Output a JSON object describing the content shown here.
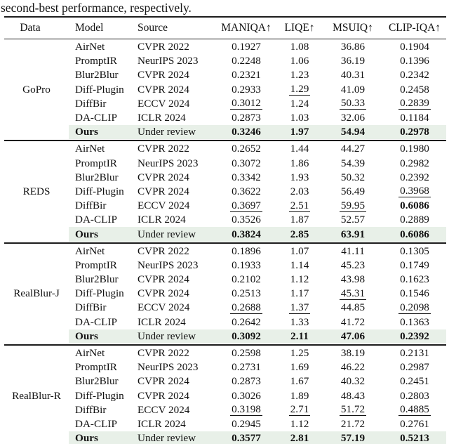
{
  "caption": "second-best performance, respectively.",
  "highlight_color": "#e8f0e8",
  "header": {
    "columns": [
      "Data",
      "Model",
      "Source",
      "MANIQA↑",
      "LIQE↑",
      "MSUIQ↑",
      "CLIP-IQA↑"
    ]
  },
  "groups": [
    {
      "data": "GoPro",
      "rows": [
        {
          "model": "AirNet",
          "source": "CVPR 2022",
          "values": [
            {
              "t": "0.1927"
            },
            {
              "t": "1.08"
            },
            {
              "t": "36.86"
            },
            {
              "t": "0.1904"
            }
          ]
        },
        {
          "model": "PromptIR",
          "source": "NeurIPS 2023",
          "values": [
            {
              "t": "0.2248"
            },
            {
              "t": "1.06"
            },
            {
              "t": "36.19"
            },
            {
              "t": "0.1396"
            }
          ]
        },
        {
          "model": "Blur2Blur",
          "source": "CVPR 2024",
          "values": [
            {
              "t": "0.2321"
            },
            {
              "t": "1.23"
            },
            {
              "t": "40.31"
            },
            {
              "t": "0.2342"
            }
          ]
        },
        {
          "model": "Diff-Plugin",
          "source": "CVPR 2024",
          "values": [
            {
              "t": "0.2933"
            },
            {
              "t": "1.29",
              "s": "u"
            },
            {
              "t": "41.09"
            },
            {
              "t": "0.2458"
            }
          ]
        },
        {
          "model": "DiffBir",
          "source": "ECCV 2024",
          "values": [
            {
              "t": "0.3012",
              "s": "u"
            },
            {
              "t": "1.24"
            },
            {
              "t": "50.33",
              "s": "u"
            },
            {
              "t": "0.2839",
              "s": "u"
            }
          ]
        },
        {
          "model": "DA-CLIP",
          "source": "ICLR 2024",
          "values": [
            {
              "t": "0.2873"
            },
            {
              "t": "1.03"
            },
            {
              "t": "32.06"
            },
            {
              "t": "0.1184"
            }
          ]
        },
        {
          "model": "Ours",
          "source": "Under review",
          "highlight": true,
          "values": [
            {
              "t": "0.3246",
              "s": "b"
            },
            {
              "t": "1.97",
              "s": "b"
            },
            {
              "t": "54.94",
              "s": "b"
            },
            {
              "t": "0.2978",
              "s": "b"
            }
          ]
        }
      ]
    },
    {
      "data": "REDS",
      "rows": [
        {
          "model": "AirNet",
          "source": "CVPR 2022",
          "values": [
            {
              "t": "0.2652"
            },
            {
              "t": "1.44"
            },
            {
              "t": "44.27"
            },
            {
              "t": "0.1980"
            }
          ]
        },
        {
          "model": "PromptIR",
          "source": "NeurIPS 2023",
          "values": [
            {
              "t": "0.3072"
            },
            {
              "t": "1.86"
            },
            {
              "t": "54.39"
            },
            {
              "t": "0.2982"
            }
          ]
        },
        {
          "model": "Blur2Blur",
          "source": "CVPR 2024",
          "values": [
            {
              "t": "0.3342"
            },
            {
              "t": "1.93"
            },
            {
              "t": "50.32"
            },
            {
              "t": "0.2392"
            }
          ]
        },
        {
          "model": "Diff-Plugin",
          "source": "CVPR 2024",
          "values": [
            {
              "t": "0.3622"
            },
            {
              "t": "2.03"
            },
            {
              "t": "56.49"
            },
            {
              "t": "0.3968",
              "s": "u"
            }
          ]
        },
        {
          "model": "DiffBir",
          "source": "ECCV 2024",
          "values": [
            {
              "t": "0.3697",
              "s": "u"
            },
            {
              "t": "2.51",
              "s": "u"
            },
            {
              "t": "59.95",
              "s": "u"
            },
            {
              "t": "0.6086",
              "s": "b"
            }
          ]
        },
        {
          "model": "DA-CLIP",
          "source": "ICLR 2024",
          "values": [
            {
              "t": "0.3526"
            },
            {
              "t": "1.87"
            },
            {
              "t": "52.57"
            },
            {
              "t": "0.2889"
            }
          ]
        },
        {
          "model": "Ours",
          "source": "Under review",
          "highlight": true,
          "values": [
            {
              "t": "0.3824",
              "s": "b"
            },
            {
              "t": "2.85",
              "s": "b"
            },
            {
              "t": "63.91",
              "s": "b"
            },
            {
              "t": "0.6086",
              "s": "b"
            }
          ]
        }
      ]
    },
    {
      "data": "RealBlur-J",
      "rows": [
        {
          "model": "AirNet",
          "source": "CVPR 2022",
          "values": [
            {
              "t": "0.1896"
            },
            {
              "t": "1.07"
            },
            {
              "t": "41.11"
            },
            {
              "t": "0.1305"
            }
          ]
        },
        {
          "model": "PromptIR",
          "source": "NeurIPS 2023",
          "values": [
            {
              "t": "0.1933"
            },
            {
              "t": "1.14"
            },
            {
              "t": "45.23"
            },
            {
              "t": "0.1749"
            }
          ]
        },
        {
          "model": "Blur2Blur",
          "source": "CVPR 2024",
          "values": [
            {
              "t": "0.2102"
            },
            {
              "t": "1.12"
            },
            {
              "t": "43.98"
            },
            {
              "t": "0.1623"
            }
          ]
        },
        {
          "model": "Diff-Plugin",
          "source": "CVPR 2024",
          "values": [
            {
              "t": "0.2513"
            },
            {
              "t": "1.17"
            },
            {
              "t": "45.31",
              "s": "u"
            },
            {
              "t": "0.1546"
            }
          ]
        },
        {
          "model": "DiffBir",
          "source": "ECCV 2024",
          "values": [
            {
              "t": "0.2688",
              "s": "u"
            },
            {
              "t": "1.37",
              "s": "u"
            },
            {
              "t": "44.85"
            },
            {
              "t": "0.2098",
              "s": "u"
            }
          ]
        },
        {
          "model": "DA-CLIP",
          "source": "ICLR 2024",
          "values": [
            {
              "t": "0.2642"
            },
            {
              "t": "1.33"
            },
            {
              "t": "41.72"
            },
            {
              "t": "0.1363"
            }
          ]
        },
        {
          "model": "Ours",
          "source": "Under review",
          "highlight": true,
          "values": [
            {
              "t": "0.3092",
              "s": "b"
            },
            {
              "t": "2.11",
              "s": "b"
            },
            {
              "t": "47.06",
              "s": "b"
            },
            {
              "t": "0.2392",
              "s": "b"
            }
          ]
        }
      ]
    },
    {
      "data": "RealBlur-R",
      "rows": [
        {
          "model": "AirNet",
          "source": "CVPR 2022",
          "values": [
            {
              "t": "0.2598"
            },
            {
              "t": "1.25"
            },
            {
              "t": "38.19"
            },
            {
              "t": "0.2131"
            }
          ]
        },
        {
          "model": "PromptIR",
          "source": "NeurIPS 2023",
          "values": [
            {
              "t": "0.2731"
            },
            {
              "t": "1.69"
            },
            {
              "t": "46.22"
            },
            {
              "t": "0.2987"
            }
          ]
        },
        {
          "model": "Blur2Blur",
          "source": "CVPR 2024",
          "values": [
            {
              "t": "0.2873"
            },
            {
              "t": "1.67"
            },
            {
              "t": "40.32"
            },
            {
              "t": "0.2451"
            }
          ]
        },
        {
          "model": "Diff-Plugin",
          "source": "CVPR 2024",
          "values": [
            {
              "t": "0.3026"
            },
            {
              "t": "1.89"
            },
            {
              "t": "48.43"
            },
            {
              "t": "0.2803"
            }
          ]
        },
        {
          "model": "DiffBir",
          "source": "ECCV 2024",
          "values": [
            {
              "t": "0.3198",
              "s": "u"
            },
            {
              "t": "2.71",
              "s": "u"
            },
            {
              "t": "51.72",
              "s": "u"
            },
            {
              "t": "0.4885",
              "s": "u"
            }
          ]
        },
        {
          "model": "DA-CLIP",
          "source": "ICLR 2024",
          "values": [
            {
              "t": "0.2945"
            },
            {
              "t": "1.12"
            },
            {
              "t": "21.72"
            },
            {
              "t": "0.2761"
            }
          ]
        },
        {
          "model": "Ours",
          "source": "Under review",
          "highlight": true,
          "values": [
            {
              "t": "0.3577",
              "s": "b"
            },
            {
              "t": "2.81",
              "s": "b"
            },
            {
              "t": "57.19",
              "s": "b"
            },
            {
              "t": "0.5213",
              "s": "b"
            }
          ]
        }
      ]
    }
  ]
}
